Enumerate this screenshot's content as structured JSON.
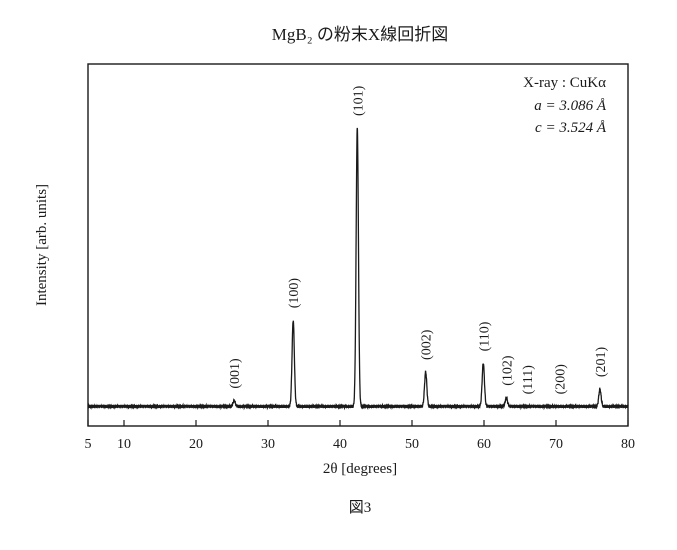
{
  "chart_data": {
    "type": "line",
    "title": "MgB₂ の粉末X線回折図",
    "xlabel": "2θ [degrees]",
    "ylabel": "Intensity [arb. units]",
    "xlim": [
      5,
      80
    ],
    "xticks": [
      5,
      10,
      20,
      30,
      40,
      50,
      60,
      70,
      80
    ],
    "ylim": [
      0,
      100
    ],
    "grid": false,
    "baseline": 3,
    "series": [
      {
        "peaks": [
          {
            "label": "(001)",
            "x": 25.3,
            "y": 5
          },
          {
            "label": "(100)",
            "x": 33.5,
            "y": 33
          },
          {
            "label": "(101)",
            "x": 42.4,
            "y": 100
          },
          {
            "label": "(002)",
            "x": 51.9,
            "y": 15
          },
          {
            "label": "(110)",
            "x": 59.9,
            "y": 18
          },
          {
            "label": "(102)",
            "x": 63.1,
            "y": 6
          },
          {
            "label": "(111)",
            "x": 66.0,
            "y": 3
          },
          {
            "label": "(200)",
            "x": 70.5,
            "y": 3
          },
          {
            "label": "(201)",
            "x": 76.1,
            "y": 9
          }
        ]
      }
    ],
    "annotations": {
      "source": "X-ray : CuKα",
      "lattice_a": "a = 3.086 Å",
      "lattice_c": "c = 3.524 Å"
    },
    "caption": "図3"
  }
}
